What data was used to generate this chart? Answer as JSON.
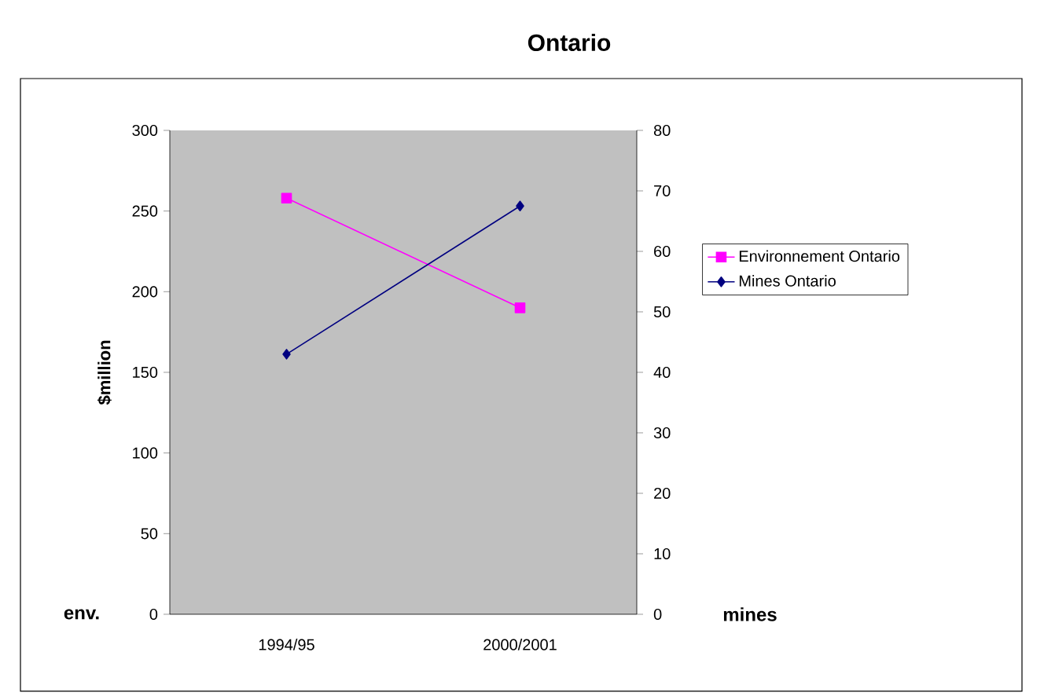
{
  "chart_data": {
    "type": "line",
    "title": "Ontario",
    "ylabel": "$million",
    "categories": [
      "1994/95",
      "2000/2001"
    ],
    "series": [
      {
        "name": "Environnement Ontario",
        "color": "#ff00ff",
        "marker": "square",
        "values": [
          258,
          190
        ]
      },
      {
        "name": "Mines Ontario",
        "color": "#000080",
        "marker": "diamond",
        "axis": "y2",
        "values": [
          43,
          67.5
        ]
      }
    ],
    "ylim": [
      0,
      300
    ],
    "yticks": [
      0,
      50,
      100,
      150,
      200,
      250,
      300
    ],
    "y2lim": [
      0,
      80
    ],
    "y2ticks": [
      0,
      10,
      20,
      30,
      40,
      50,
      60,
      70,
      80
    ],
    "annotations": [
      "env.",
      "mines"
    ],
    "legend": "right",
    "grid": false
  }
}
